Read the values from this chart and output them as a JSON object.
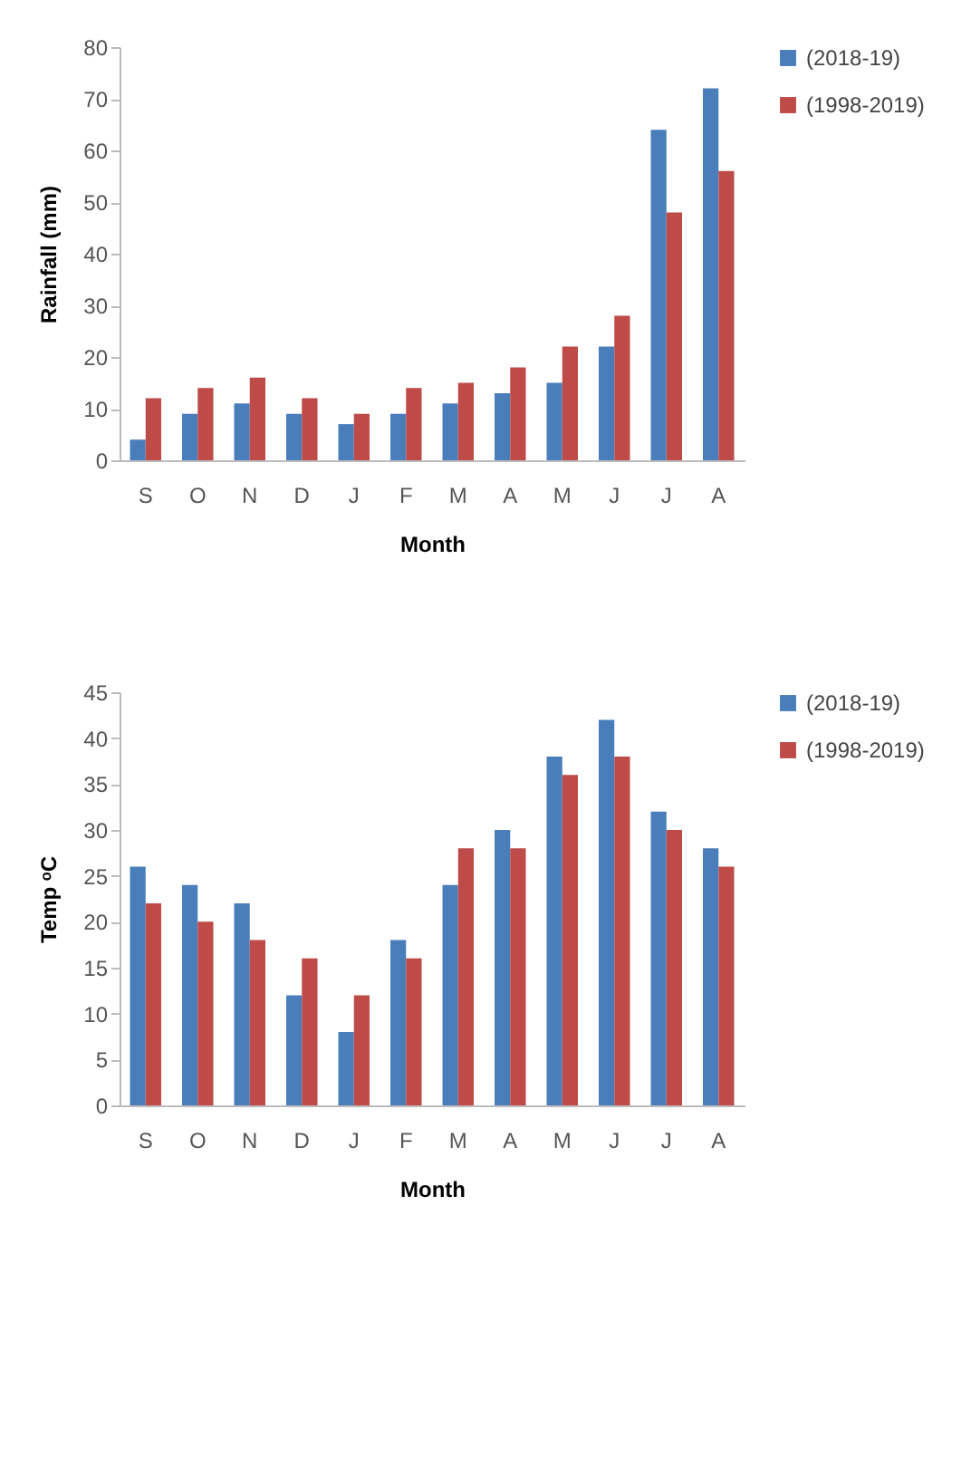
{
  "chart_data": [
    {
      "type": "bar",
      "xlabel": "Month",
      "ylabel": "Rainfall (mm)",
      "categories": [
        "S",
        "O",
        "N",
        "D",
        "J",
        "F",
        "M",
        "A",
        "M",
        "J",
        "J",
        "A"
      ],
      "ylim": [
        0,
        80
      ],
      "yticks": [
        0,
        10,
        20,
        30,
        40,
        50,
        60,
        70,
        80
      ],
      "legend": "right",
      "series": [
        {
          "name": "(2018-19)",
          "color": "#4a7ebb",
          "values": [
            4,
            9,
            11,
            9,
            7,
            9,
            11,
            13,
            15,
            22,
            64,
            72
          ]
        },
        {
          "name": "(1998-2019)",
          "color": "#be4b48",
          "values": [
            12,
            14,
            16,
            12,
            9,
            14,
            15,
            18,
            22,
            28,
            48,
            56
          ]
        }
      ]
    },
    {
      "type": "bar",
      "xlabel": "Month",
      "ylabel": "Temp ᵒC",
      "categories": [
        "S",
        "O",
        "N",
        "D",
        "J",
        "F",
        "M",
        "A",
        "M",
        "J",
        "J",
        "A"
      ],
      "ylim": [
        0,
        45
      ],
      "yticks": [
        0,
        5,
        10,
        15,
        20,
        25,
        30,
        35,
        40,
        45
      ],
      "legend": "right",
      "series": [
        {
          "name": "(2018-19)",
          "color": "#4a7ebb",
          "values": [
            26,
            24,
            22,
            12,
            8,
            18,
            24,
            30,
            38,
            42,
            32,
            28
          ]
        },
        {
          "name": "(1998-2019)",
          "color": "#be4b48",
          "values": [
            22,
            20,
            18,
            16,
            12,
            16,
            28,
            28,
            36,
            38,
            30,
            26
          ]
        }
      ]
    }
  ]
}
